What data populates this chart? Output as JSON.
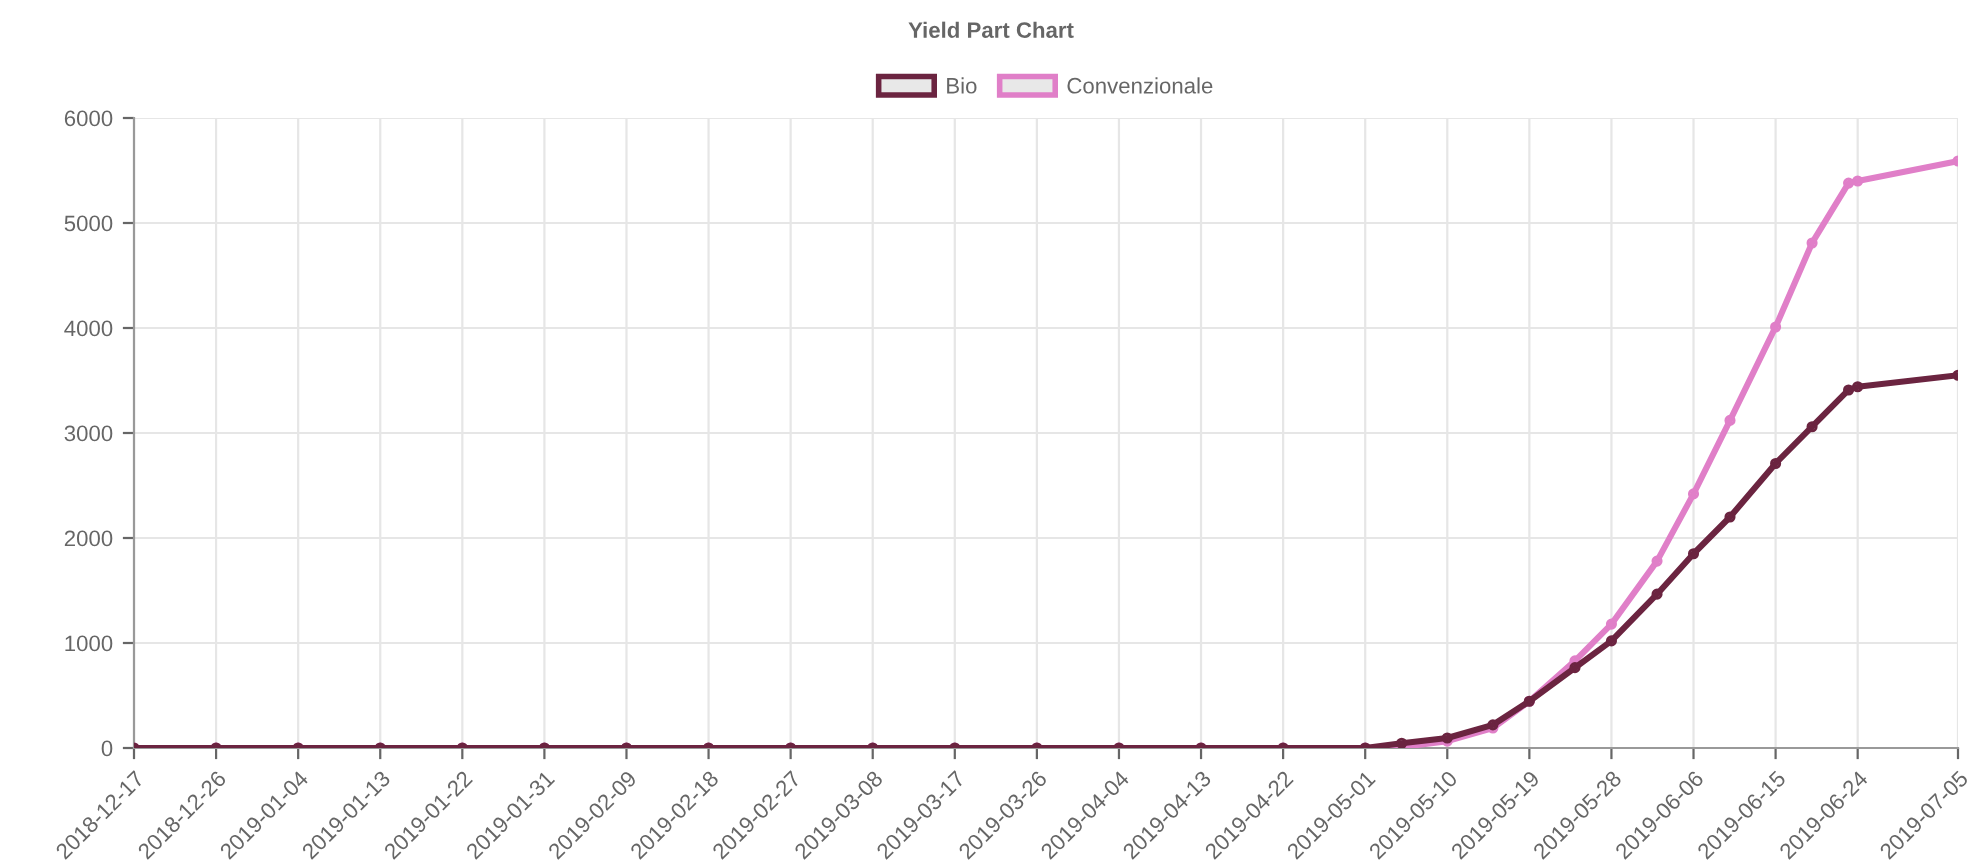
{
  "chart_data": {
    "type": "line",
    "title": "Yield Part Chart",
    "x": [
      "2018-12-17",
      "2018-12-26",
      "2019-01-04",
      "2019-01-13",
      "2019-01-22",
      "2019-01-31",
      "2019-02-09",
      "2019-02-18",
      "2019-02-27",
      "2019-03-08",
      "2019-03-17",
      "2019-03-26",
      "2019-04-04",
      "2019-04-13",
      "2019-04-22",
      "2019-05-01",
      "2019-05-05",
      "2019-05-10",
      "2019-05-15",
      "2019-05-19",
      "2019-05-24",
      "2019-05-28",
      "2019-06-02",
      "2019-06-06",
      "2019-06-10",
      "2019-06-15",
      "2019-06-19",
      "2019-06-23",
      "2019-06-24",
      "2019-07-05"
    ],
    "series": [
      {
        "name": "Bio",
        "color": "#6b2440",
        "values": [
          0,
          0,
          0,
          0,
          0,
          0,
          0,
          0,
          0,
          0,
          0,
          0,
          0,
          0,
          0,
          0,
          45,
          95,
          220,
          445,
          765,
          1020,
          1465,
          1850,
          2200,
          2710,
          3060,
          3410,
          3440,
          3550
        ]
      },
      {
        "name": "Convenzionale",
        "color": "#e07fc8",
        "values": [
          0,
          0,
          0,
          0,
          0,
          0,
          0,
          0,
          0,
          0,
          0,
          0,
          0,
          0,
          0,
          0,
          10,
          65,
          190,
          445,
          830,
          1180,
          1780,
          2420,
          3120,
          4010,
          4810,
          5380,
          5400,
          5590
        ]
      }
    ],
    "xlim": [
      "2018-12-17",
      "2019-07-05"
    ],
    "xticks": [
      "2018-12-17",
      "2018-12-26",
      "2019-01-04",
      "2019-01-13",
      "2019-01-22",
      "2019-01-31",
      "2019-02-09",
      "2019-02-18",
      "2019-02-27",
      "2019-03-08",
      "2019-03-17",
      "2019-03-26",
      "2019-04-04",
      "2019-04-13",
      "2019-04-22",
      "2019-05-01",
      "2019-05-10",
      "2019-05-19",
      "2019-05-28",
      "2019-06-06",
      "2019-06-15",
      "2019-06-24",
      "2019-07-05"
    ],
    "ylim": [
      0,
      6000
    ],
    "yticks": [
      0,
      1000,
      2000,
      3000,
      4000,
      5000,
      6000
    ],
    "grid": true,
    "legend": "top",
    "marker": "circle",
    "line_style": "solid"
  }
}
